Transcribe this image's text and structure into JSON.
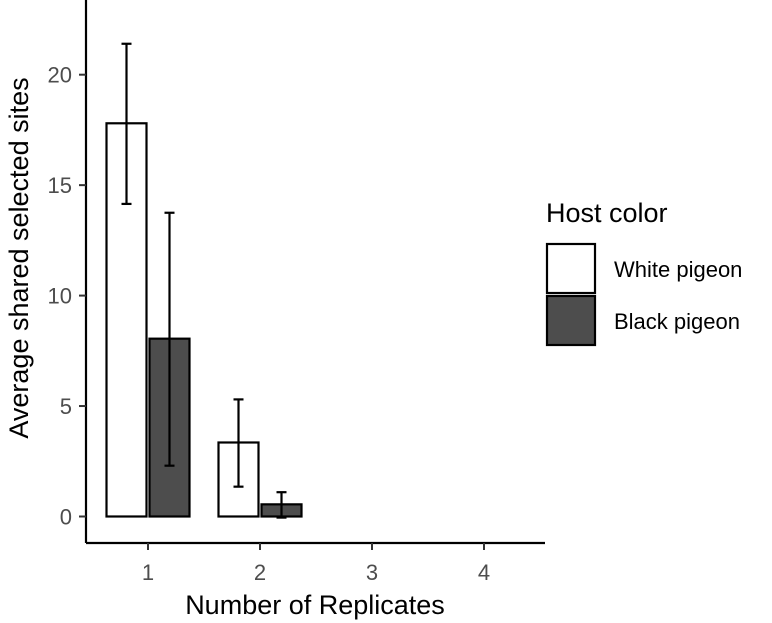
{
  "chart_data": {
    "type": "bar",
    "xlabel": "Number of Replicates",
    "ylabel": "Average shared selected sites",
    "categories": [
      "1",
      "2",
      "3",
      "4"
    ],
    "ylim": [
      -1.2,
      23.2
    ],
    "yticks": [
      0,
      5,
      10,
      15,
      20
    ],
    "grid": false,
    "legend": {
      "title": "Host color",
      "position": "right"
    },
    "series": [
      {
        "name": "White pigeon",
        "color": "#ffffff",
        "values": [
          17.8,
          3.35,
          0,
          0
        ],
        "error_low": [
          14.15,
          1.35,
          0,
          0
        ],
        "error_high": [
          21.4,
          5.3,
          0,
          0
        ]
      },
      {
        "name": "Black pigeon",
        "color": "#4d4d4d",
        "values": [
          8.05,
          0.55,
          0,
          0
        ],
        "error_low": [
          2.3,
          -0.05,
          0,
          0
        ],
        "error_high": [
          13.75,
          1.1,
          0,
          0
        ]
      }
    ]
  }
}
